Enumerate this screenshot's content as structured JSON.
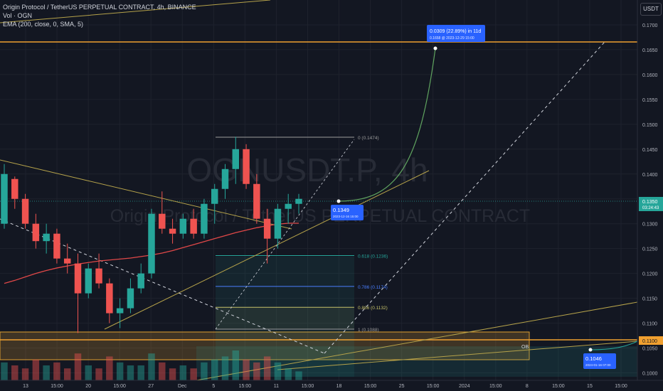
{
  "header": {
    "symbol_line": "Origin Protocol / TetherUS PERPETUAL CONTRACT, 4h, BINANCE",
    "volume_line": "Vol · OGN",
    "ema_line": "EMA (200, close, 0, SMA, 5)"
  },
  "currency_button": "USDT",
  "watermark": {
    "ticker": "OGNUSDT.P, 4h",
    "name": "Origin Protocol / TetherUS PERPETUAL CONTRACT"
  },
  "colors": {
    "background": "#131722",
    "up": "#26a69a",
    "down": "#ef5350",
    "ema": "#e04848",
    "trend": "#b5a24a",
    "accent": "#2962ff",
    "level": "#f0a030"
  },
  "chart_data": {
    "type": "candlestick",
    "title": "Origin Protocol / TetherUS PERPETUAL CONTRACT, 4h, BINANCE",
    "price_axis": {
      "ticks": [
        "0.1700",
        "0.1650",
        "0.1600",
        "0.1550",
        "0.1500",
        "0.1450",
        "0.1400",
        "0.1350",
        "0.1300",
        "0.1250",
        "0.1200",
        "0.1150",
        "0.1100",
        "0.1050",
        "0.1000"
      ],
      "range": [
        0.0985,
        0.175
      ]
    },
    "time_axis": {
      "ticks": [
        "13",
        "15:00",
        "20",
        "15:00",
        "27",
        "Dec",
        "5",
        "15:00",
        "11",
        "15:00",
        "18",
        "15:00",
        "25",
        "15:00",
        "2024",
        "15:00",
        "8",
        "15:00",
        "15",
        "15:00"
      ]
    },
    "last_price": {
      "value": "0.1350",
      "countdown": "03:24:43"
    },
    "level_labels": [
      "0.1100"
    ],
    "ema_values": [
      0.118,
      0.1186,
      0.1193,
      0.12,
      0.1206,
      0.1211,
      0.1215,
      0.1219,
      0.1222,
      0.1225,
      0.1227,
      0.1229,
      0.1231,
      0.1234,
      0.1237,
      0.1241,
      0.1246,
      0.1252,
      0.1258,
      0.1264,
      0.127,
      0.1276,
      0.1282,
      0.1287,
      0.1292,
      0.1296,
      0.1299,
      0.1301,
      0.1301
    ],
    "series": [
      {
        "name": "OHLC",
        "values": [
          [
            0.13,
            0.142,
            0.129,
            0.14
          ],
          [
            0.139,
            0.1395,
            0.133,
            0.135
          ],
          [
            0.135,
            0.136,
            0.129,
            0.13
          ],
          [
            0.13,
            0.132,
            0.125,
            0.1265
          ],
          [
            0.1265,
            0.13,
            0.124,
            0.128
          ],
          [
            0.128,
            0.129,
            0.122,
            0.123
          ],
          [
            0.123,
            0.126,
            0.12,
            0.122
          ],
          [
            0.122,
            0.124,
            0.108,
            0.116
          ],
          [
            0.116,
            0.122,
            0.115,
            0.121
          ],
          [
            0.121,
            0.124,
            0.117,
            0.118
          ],
          [
            0.118,
            0.119,
            0.11,
            0.112
          ],
          [
            0.112,
            0.115,
            0.109,
            0.113
          ],
          [
            0.113,
            0.119,
            0.112,
            0.117
          ],
          [
            0.117,
            0.122,
            0.116,
            0.12
          ],
          [
            0.12,
            0.133,
            0.119,
            0.132
          ],
          [
            0.132,
            0.1365,
            0.128,
            0.129
          ],
          [
            0.129,
            0.131,
            0.126,
            0.128
          ],
          [
            0.128,
            0.132,
            0.127,
            0.131
          ],
          [
            0.131,
            0.133,
            0.127,
            0.128
          ],
          [
            0.128,
            0.135,
            0.127,
            0.134
          ],
          [
            0.134,
            0.138,
            0.13,
            0.137
          ],
          [
            0.137,
            0.142,
            0.135,
            0.141
          ],
          [
            0.141,
            0.1475,
            0.138,
            0.145
          ],
          [
            0.145,
            0.146,
            0.137,
            0.138
          ],
          [
            0.138,
            0.14,
            0.13,
            0.131
          ],
          [
            0.131,
            0.133,
            0.122,
            0.127
          ],
          [
            0.127,
            0.134,
            0.125,
            0.133
          ],
          [
            0.133,
            0.136,
            0.13,
            0.134
          ],
          [
            0.134,
            0.136,
            0.132,
            0.135
          ]
        ]
      }
    ],
    "volume": [
      0.6,
      0.5,
      0.4,
      0.7,
      0.5,
      0.6,
      0.4,
      0.9,
      0.5,
      0.4,
      0.8,
      0.6,
      0.5,
      0.5,
      0.9,
      0.6,
      0.4,
      0.5,
      0.4,
      0.6,
      0.7,
      0.8,
      1.0,
      0.7,
      0.6,
      0.8,
      0.6,
      0.4,
      0.3
    ],
    "fibonacci": [
      {
        "label": "0 (0.1474)",
        "price": 0.1474,
        "color": "#9c9c9c"
      },
      {
        "label": "0.618 (0.1236)",
        "price": 0.1236,
        "color": "#26a69a"
      },
      {
        "label": "0.786 (0.1174)",
        "price": 0.1174,
        "color": "#4a7fff"
      },
      {
        "label": "0.886 (0.1132)",
        "price": 0.1132,
        "color": "#c8c36a"
      },
      {
        "label": "1 (0.1088)",
        "price": 0.1088,
        "color": "#9c9c9c"
      }
    ],
    "order_block_label": "OB",
    "callouts": [
      {
        "price_text": "0.1349",
        "date_text": "2023-12-16 15:00"
      },
      {
        "price_text": "0.0309 (22.89%) in 11d",
        "date_text": "0.1658 @ 2023-12-29 15:00"
      },
      {
        "price_text": "0.1046",
        "date_text": "2024-01-16 07:00"
      }
    ]
  }
}
